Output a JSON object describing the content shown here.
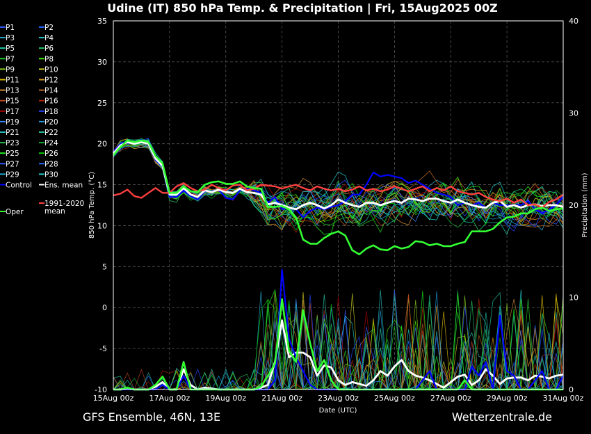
{
  "title": "Udine  (IT)  850 hPa Temp. & Precipitation | Fri, 15Aug2025 00Z",
  "footer_left": "GFS Ensemble, 46N, 13E",
  "footer_right": "Wetterzentrale.de",
  "chart_data": {
    "type": "line",
    "title": "Udine  (IT)  850 hPa Temp. & Precipitation | Fri, 15Aug2025 00Z",
    "xlabel": "Date (UTC)",
    "ylabel": "850 hPa Temp. (°C)",
    "y2label": "Precipitation (mm)",
    "ylim": [
      -10,
      35
    ],
    "y2lim": [
      0,
      40
    ],
    "xlim": [
      "15Aug 00z",
      "31Aug 00z"
    ],
    "x_tick_labels": [
      "15Aug 00z",
      "17Aug 00z",
      "19Aug 00z",
      "21Aug 00z",
      "23Aug 00z",
      "25Aug 00z",
      "27Aug 00z",
      "29Aug 00z",
      "31Aug 00z"
    ],
    "y_ticks": [
      35,
      30,
      25,
      20,
      15,
      10,
      5,
      0,
      -5,
      -10
    ],
    "y2_ticks": [
      40,
      30,
      20,
      10,
      0
    ],
    "grid": true,
    "legend_position": "left, outside plot",
    "x_step_hours": 6,
    "legend": {
      "col1": [
        "P1",
        "P3",
        "P5",
        "P7",
        "P9",
        "P11",
        "P13",
        "P15",
        "P17",
        "P19",
        "P21",
        "P23",
        "P25",
        "P27",
        "P29",
        "Control"
      ],
      "col2": [
        "P2",
        "P4",
        "P6",
        "P8",
        "P10",
        "P12",
        "P14",
        "P16",
        "P18",
        "P20",
        "P22",
        "P24",
        "P26",
        "P28",
        "P30",
        "Ens. mean"
      ],
      "extra": [
        {
          "name": "1991-2020\nmean",
          "color": "#ff4040"
        },
        {
          "name": "Oper",
          "color": "#33ff33"
        }
      ]
    },
    "member_colors": [
      "#3355ff",
      "#2266ff",
      "#22aacc",
      "#22cccc",
      "#22ccaa",
      "#22cc66",
      "#22cc22",
      "#44ee00",
      "#88cc22",
      "#cccc22",
      "#ddbb00",
      "#dd9922",
      "#cc8833",
      "#bb6622",
      "#bb4422",
      "#aa2200",
      "#aa0000",
      "#2244ff",
      "#3388ff",
      "#2299dd",
      "#22bbbb",
      "#22bb99",
      "#22bb55",
      "#11aa33",
      "#22ee22",
      "#00cc00"
    ],
    "series": [
      {
        "name": "Control",
        "color": "#0000ff",
        "kind": "temp",
        "values": [
          19,
          20,
          20.3,
          20,
          20.5,
          20,
          18,
          17.2,
          13.5,
          13.5,
          14.3,
          13.6,
          13.2,
          14.2,
          14.2,
          14.4,
          13.4,
          13.2,
          14.3,
          14.5,
          14.3,
          14,
          12.8,
          13.5,
          12,
          12.2,
          12,
          11,
          11.8,
          12.2,
          12,
          12.3,
          12.5,
          13,
          13.8,
          13.8,
          15,
          16.5,
          16,
          16.2,
          16,
          15.8,
          15.2,
          15.5,
          15,
          14.5,
          14,
          13.8,
          13.5,
          12.5,
          12.8,
          12.5,
          12.8,
          12.2,
          12.8,
          12.5,
          12.5,
          12.5,
          12.5,
          13,
          12,
          11.5,
          12,
          12.5,
          13.5
        ]
      },
      {
        "name": "Ens. mean",
        "color": "#ffffff",
        "kind": "temp",
        "values": [
          18.8,
          19.8,
          20.2,
          20,
          20.2,
          20,
          18.2,
          17.3,
          13.8,
          13.8,
          14.6,
          13.8,
          13.5,
          14.3,
          14.1,
          14.4,
          14.1,
          14,
          14.5,
          14.1,
          14,
          13.8,
          12.6,
          12.8,
          12.5,
          12.2,
          12,
          12.5,
          12.8,
          12.5,
          12.1,
          12.5,
          13.2,
          12.8,
          12.5,
          12.3,
          12.8,
          12.8,
          12.5,
          12.8,
          13,
          12.8,
          13.3,
          13.2,
          13,
          13.3,
          13.3,
          13,
          12.8,
          13.2,
          12.8,
          12.5,
          12.3,
          12.2,
          12.8,
          13,
          12.3,
          12.5,
          12.2,
          12.5,
          12.6,
          12.4,
          12.5,
          12.5,
          12.3
        ]
      },
      {
        "name": "1991-2020 mean",
        "color": "#ff4040",
        "kind": "temp",
        "values": [
          13.7,
          13.9,
          14.4,
          13.6,
          13.4,
          14,
          14.6,
          14,
          14,
          14.8,
          15.2,
          14.6,
          14.2,
          14.4,
          15,
          14.6,
          14.3,
          14.9,
          15,
          14.3,
          14.5,
          15,
          14.9,
          14.8,
          14.5,
          14.8,
          15,
          14.6,
          14.3,
          14.8,
          14.5,
          14.3,
          14.5,
          14.2,
          14.4,
          14.8,
          14.3,
          14.5,
          14.2,
          14.4,
          14.8,
          14.5,
          14.2,
          14.5,
          14.8,
          14.2,
          14.6,
          14.3,
          14.8,
          14.2,
          14,
          13.8,
          14,
          13.5,
          13.2,
          13,
          13.3,
          12.8,
          13.2,
          12.5,
          12.6,
          12.2,
          12.9,
          13.2,
          13.8
        ]
      },
      {
        "name": "Oper",
        "color": "#33ff33",
        "kind": "temp",
        "values": [
          18.6,
          19.6,
          20.4,
          20.2,
          20.4,
          20.2,
          18.5,
          17.6,
          14,
          14,
          14.8,
          14.2,
          14.1,
          15,
          15.3,
          15.4,
          15.1,
          15.1,
          15.4,
          14.8,
          14.6,
          14.5,
          12.3,
          12.3,
          12.4,
          12,
          11,
          8.3,
          7.8,
          7.8,
          8.5,
          9,
          9.3,
          8.8,
          7,
          6.5,
          7.2,
          7.6,
          7.1,
          7,
          7.5,
          7.2,
          7.4,
          8.1,
          8,
          7.6,
          7.8,
          7.5,
          7.5,
          7.8,
          8,
          9.3,
          9.3,
          9.3,
          9.6,
          10.4,
          11,
          11.1,
          11.5,
          11.5,
          12,
          12.2,
          11.8,
          12,
          12.1
        ]
      },
      {
        "name": "Ens. mean",
        "color": "#ffffff",
        "kind": "precip",
        "values": [
          0,
          0,
          0.1,
          0,
          0,
          0,
          0.3,
          0.8,
          0,
          0,
          2.2,
          0.5,
          0,
          0.2,
          0.1,
          0,
          0,
          0,
          0,
          0,
          0,
          0.2,
          0.5,
          3,
          7.5,
          3.5,
          4,
          4,
          3.5,
          1.5,
          2.6,
          2.4,
          1,
          0.5,
          0.8,
          0.6,
          0.4,
          1,
          2,
          1.5,
          2.5,
          3.2,
          2,
          1.5,
          1.3,
          1,
          0.6,
          0.2,
          0.8,
          1.4,
          1.6,
          0.5,
          1,
          2.2,
          1.5,
          0.6,
          1.2,
          1.3,
          1.3,
          1,
          1.5,
          1.4,
          1.2,
          1.5,
          1.6
        ]
      },
      {
        "name": "Control",
        "color": "#0000ff",
        "kind": "precip",
        "values": [
          0,
          0,
          0,
          0,
          0,
          0,
          0,
          0.5,
          0,
          0,
          1.5,
          0,
          0,
          0,
          0,
          0,
          0,
          0,
          0,
          0,
          0,
          0,
          0,
          1,
          13,
          5.5,
          3.5,
          2,
          0.5,
          0,
          0,
          0,
          0,
          0,
          0,
          0,
          0,
          0,
          0,
          0,
          0,
          0,
          0,
          0,
          1,
          2,
          0,
          0,
          0,
          0,
          0,
          2.5,
          1.5,
          3,
          0,
          8,
          2,
          1.5,
          0,
          0,
          1,
          2,
          0,
          0,
          1.5
        ]
      },
      {
        "name": "Oper",
        "color": "#33ff33",
        "kind": "precip",
        "values": [
          0,
          0,
          0.2,
          0,
          0,
          0,
          0.5,
          1.4,
          0,
          0,
          3,
          0,
          0,
          0,
          0,
          0,
          0,
          0,
          0,
          0,
          0,
          0.3,
          1.5,
          2.8,
          9.8,
          4.2,
          3,
          8.6,
          5,
          2,
          3.2,
          1,
          0,
          0,
          0,
          0,
          0,
          0,
          0,
          0,
          0,
          0,
          0,
          0,
          0,
          0,
          0,
          0,
          0,
          0,
          1,
          0,
          0,
          0,
          0,
          0,
          0,
          0,
          0,
          0,
          0,
          0,
          0,
          0,
          0
        ]
      }
    ]
  }
}
